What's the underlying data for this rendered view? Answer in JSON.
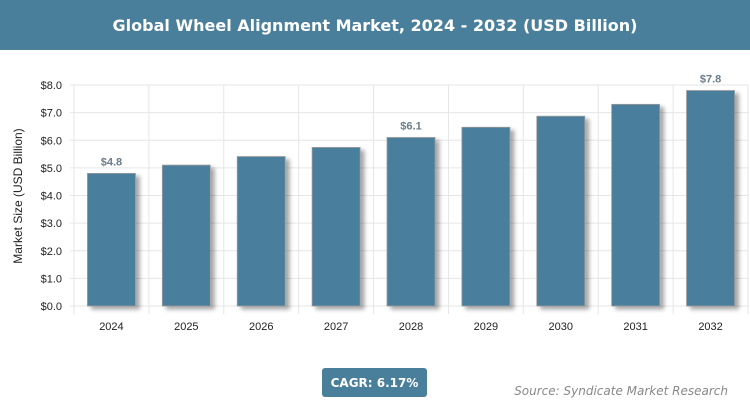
{
  "chart_data": {
    "type": "bar",
    "title": "Global Wheel Alignment Market, 2024 - 2032 (USD Billion)",
    "xlabel": "",
    "ylabel": "Market Size (USD Billion)",
    "categories": [
      "2024",
      "2025",
      "2026",
      "2027",
      "2028",
      "2029",
      "2030",
      "2031",
      "2032"
    ],
    "values": [
      4.8,
      5.1,
      5.41,
      5.74,
      6.1,
      6.47,
      6.87,
      7.3,
      7.8
    ],
    "data_labels": {
      "0": "$4.8",
      "4": "$6.1",
      "8": "$7.8"
    },
    "ylim": [
      0,
      8
    ],
    "yticks": [
      "$0.0",
      "$1.0",
      "$2.0",
      "$3.0",
      "$4.0",
      "$5.0",
      "$6.0",
      "$7.0",
      "$8.0"
    ],
    "grid": true,
    "bar_color": "#4a7f9c"
  },
  "cagr": "CAGR: 6.17%",
  "source": "Source: Syndicate Market Research"
}
